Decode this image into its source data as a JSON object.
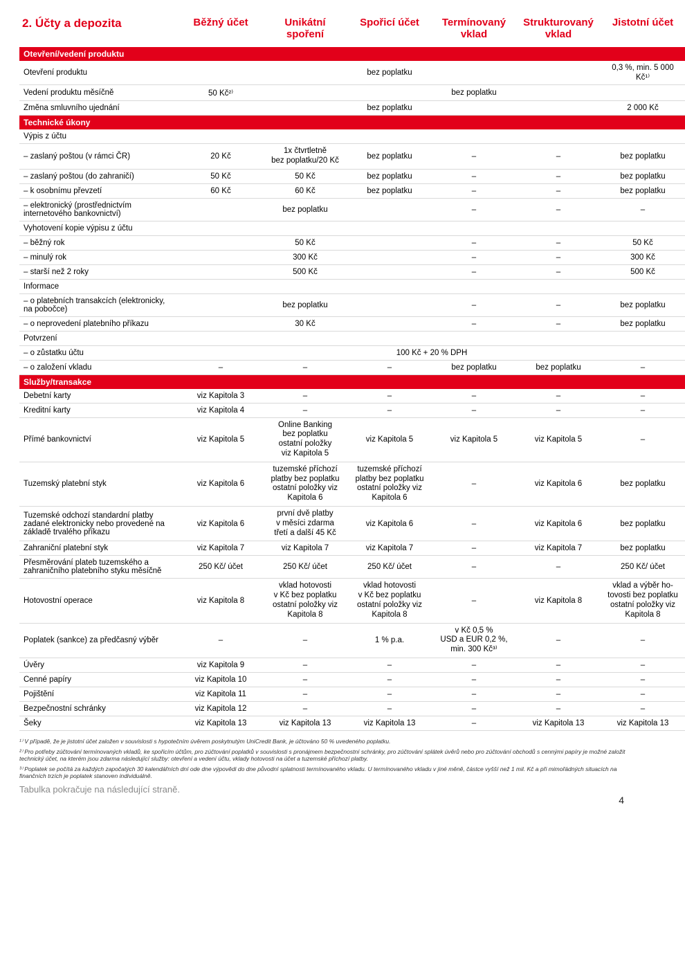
{
  "colors": {
    "accent": "#e2001a",
    "grid": "#d9d9d9",
    "muted": "#888888"
  },
  "header": {
    "title": "2. Účty a depozita",
    "cols": [
      "Běžný účet",
      "Unikátní spoření",
      "Spořicí účet",
      "Termínovaný vklad",
      "Strukturovaný vklad",
      "Jistotní účet"
    ]
  },
  "sections": [
    {
      "band": "Otevření/vedení produktu",
      "rows": [
        {
          "label": "Otevření produktu",
          "cells": [
            {
              "v": "bez poplatku",
              "span": 5
            },
            {
              "v": "0,3 %, min. 5 000 Kč¹⁾"
            }
          ]
        },
        {
          "label": "Vedení produktu měsíčně",
          "cells": [
            {
              "v": "50 Kč²⁾"
            },
            {
              "v": "bez poplatku",
              "span": 5
            }
          ]
        },
        {
          "label": "Změna smluvního ujednání",
          "cells": [
            {
              "v": "bez poplatku",
              "span": 5
            },
            {
              "v": "2 000 Kč"
            }
          ]
        }
      ]
    },
    {
      "band": "Technické úkony",
      "rows": [
        {
          "label": "Výpis z účtu",
          "subhead": true
        },
        {
          "label": "– zaslaný poštou (v rámci ČR)",
          "cells": [
            {
              "v": "20 Kč"
            },
            {
              "v": "1x čtvrtletně\nbez poplatku/20 Kč"
            },
            {
              "v": "bez poplatku"
            },
            {
              "v": "–"
            },
            {
              "v": "–"
            },
            {
              "v": "bez poplatku"
            }
          ]
        },
        {
          "label": "– zaslaný poštou (do zahraničí)",
          "cells": [
            {
              "v": "50 Kč"
            },
            {
              "v": "50 Kč"
            },
            {
              "v": "bez poplatku"
            },
            {
              "v": "–"
            },
            {
              "v": "–"
            },
            {
              "v": "bez poplatku"
            }
          ]
        },
        {
          "label": "– k osobnímu převzetí",
          "cells": [
            {
              "v": "60 Kč"
            },
            {
              "v": "60 Kč"
            },
            {
              "v": "bez poplatku"
            },
            {
              "v": "–"
            },
            {
              "v": "–"
            },
            {
              "v": "bez poplatku"
            }
          ]
        },
        {
          "label": "– elektronický (prostřednictvím internetového bankovnictví)",
          "cells": [
            {
              "v": "bez poplatku",
              "span": 3
            },
            {
              "v": "–"
            },
            {
              "v": "–"
            },
            {
              "v": "–"
            }
          ]
        },
        {
          "label": "Vyhotovení kopie výpisu z účtu",
          "subhead": true
        },
        {
          "label": "– běžný rok",
          "cells": [
            {
              "v": "50 Kč",
              "span": 3
            },
            {
              "v": "–"
            },
            {
              "v": "–"
            },
            {
              "v": "50 Kč"
            }
          ]
        },
        {
          "label": "– minulý rok",
          "cells": [
            {
              "v": "300 Kč",
              "span": 3
            },
            {
              "v": "–"
            },
            {
              "v": "–"
            },
            {
              "v": "300 Kč"
            }
          ]
        },
        {
          "label": "– starší než 2 roky",
          "cells": [
            {
              "v": "500 Kč",
              "span": 3
            },
            {
              "v": "–"
            },
            {
              "v": "–"
            },
            {
              "v": "500 Kč"
            }
          ]
        },
        {
          "label": "Informace",
          "subhead": true
        },
        {
          "label": "– o platebních transakcích (elektronicky, na pobočce)",
          "cells": [
            {
              "v": "bez poplatku",
              "span": 3
            },
            {
              "v": "–"
            },
            {
              "v": "–"
            },
            {
              "v": "bez poplatku"
            }
          ]
        },
        {
          "label": "– o neprovedení platebního příkazu",
          "cells": [
            {
              "v": "30 Kč",
              "span": 3
            },
            {
              "v": "–"
            },
            {
              "v": "–"
            },
            {
              "v": "bez poplatku"
            }
          ]
        },
        {
          "label": "Potvrzení",
          "subhead": true
        },
        {
          "label": "– o zůstatku účtu",
          "cells": [
            {
              "v": "100 Kč + 20 % DPH",
              "span": 6
            }
          ]
        },
        {
          "label": "– o založení vkladu",
          "cells": [
            {
              "v": "–"
            },
            {
              "v": "–"
            },
            {
              "v": "–"
            },
            {
              "v": "bez poplatku"
            },
            {
              "v": "bez poplatku"
            },
            {
              "v": "–"
            }
          ]
        }
      ]
    },
    {
      "band": "Služby/transakce",
      "rows": [
        {
          "label": "Debetní karty",
          "cells": [
            {
              "v": "viz Kapitola 3"
            },
            {
              "v": "–"
            },
            {
              "v": "–"
            },
            {
              "v": "–"
            },
            {
              "v": "–"
            },
            {
              "v": "–"
            }
          ]
        },
        {
          "label": "Kreditní karty",
          "cells": [
            {
              "v": "viz Kapitola 4"
            },
            {
              "v": "–"
            },
            {
              "v": "–"
            },
            {
              "v": "–"
            },
            {
              "v": "–"
            },
            {
              "v": "–"
            }
          ]
        },
        {
          "label": "Přímé bankovnictví",
          "cells": [
            {
              "v": "viz Kapitola 5"
            },
            {
              "v": "Online Banking\nbez poplatku\nostatní položky\nviz Kapitola 5"
            },
            {
              "v": "viz Kapitola 5"
            },
            {
              "v": "viz Kapitola 5"
            },
            {
              "v": "viz Kapitola 5"
            },
            {
              "v": "–"
            }
          ]
        },
        {
          "label": "Tuzemský platební styk",
          "cells": [
            {
              "v": "viz Kapitola 6"
            },
            {
              "v": "tuzemské příchozí\nplatby bez poplatku\nostatní položky viz\nKapitola 6"
            },
            {
              "v": "tuzemské příchozí\nplatby bez poplatku\nostatní položky viz\nKapitola 6"
            },
            {
              "v": "–"
            },
            {
              "v": "viz Kapitola 6"
            },
            {
              "v": "bez poplatku"
            }
          ]
        },
        {
          "label": "Tuzemské odchozí standardní platby zadané elektronicky nebo provedené na základě trvalého příkazu",
          "cells": [
            {
              "v": "viz Kapitola 6"
            },
            {
              "v": "první dvě platby\nv měsíci zdarma\ntřetí a další 45 Kč"
            },
            {
              "v": "viz Kapitola 6"
            },
            {
              "v": "–"
            },
            {
              "v": "viz Kapitola 6"
            },
            {
              "v": "bez poplatku"
            }
          ]
        },
        {
          "label": "Zahraniční platební styk",
          "cells": [
            {
              "v": "viz Kapitola 7"
            },
            {
              "v": "viz Kapitola 7"
            },
            {
              "v": "viz Kapitola 7"
            },
            {
              "v": "–"
            },
            {
              "v": "viz Kapitola 7"
            },
            {
              "v": "bez poplatku"
            }
          ]
        },
        {
          "label": "Přesměrování plateb tuzemského a zahraničního platebního styku měsíčně",
          "cells": [
            {
              "v": "250 Kč/ účet"
            },
            {
              "v": "250 Kč/ účet"
            },
            {
              "v": "250 Kč/ účet"
            },
            {
              "v": "–"
            },
            {
              "v": "–"
            },
            {
              "v": "250 Kč/ účet"
            }
          ]
        },
        {
          "label": "Hotovostní operace",
          "cells": [
            {
              "v": "viz Kapitola 8"
            },
            {
              "v": "vklad hotovosti\nv Kč bez poplatku\nostatní položky viz\nKapitola 8"
            },
            {
              "v": "vklad hotovosti\nv Kč bez poplatku\nostatní položky viz\nKapitola 8"
            },
            {
              "v": "–"
            },
            {
              "v": "viz Kapitola 8"
            },
            {
              "v": "vklad a výběr ho-\ntovosti bez poplatku\nostatní položky viz\nKapitola 8"
            }
          ]
        },
        {
          "label": "Poplatek (sankce) za předčasný výběr",
          "cells": [
            {
              "v": "–"
            },
            {
              "v": "–"
            },
            {
              "v": "1 % p.a."
            },
            {
              "v": "v Kč 0,5 %\nUSD a EUR 0,2 %,\nmin. 300 Kč³⁾"
            },
            {
              "v": "–"
            },
            {
              "v": "–"
            }
          ]
        },
        {
          "label": "Úvěry",
          "cells": [
            {
              "v": "viz Kapitola 9"
            },
            {
              "v": "–"
            },
            {
              "v": "–"
            },
            {
              "v": "–"
            },
            {
              "v": "–"
            },
            {
              "v": "–"
            }
          ]
        },
        {
          "label": "Cenné papíry",
          "cells": [
            {
              "v": "viz Kapitola 10"
            },
            {
              "v": "–"
            },
            {
              "v": "–"
            },
            {
              "v": "–"
            },
            {
              "v": "–"
            },
            {
              "v": "–"
            }
          ]
        },
        {
          "label": "Pojištění",
          "cells": [
            {
              "v": "viz Kapitola 11"
            },
            {
              "v": "–"
            },
            {
              "v": "–"
            },
            {
              "v": "–"
            },
            {
              "v": "–"
            },
            {
              "v": "–"
            }
          ]
        },
        {
          "label": "Bezpečnostní schránky",
          "cells": [
            {
              "v": "viz Kapitola 12"
            },
            {
              "v": "–"
            },
            {
              "v": "–"
            },
            {
              "v": "–"
            },
            {
              "v": "–"
            },
            {
              "v": "–"
            }
          ]
        },
        {
          "label": "Šeky",
          "cells": [
            {
              "v": "viz Kapitola 13"
            },
            {
              "v": "viz Kapitola 13"
            },
            {
              "v": "viz Kapitola 13"
            },
            {
              "v": "–"
            },
            {
              "v": "viz Kapitola 13"
            },
            {
              "v": "viz Kapitola 13"
            }
          ]
        }
      ]
    }
  ],
  "footnotes": [
    "¹⁾ V případě, že je jistotní účet založen v souvislosti s hypotečním úvěrem poskytnutým UniCredit Bank, je účtováno 50 % uvedeného poplatku.",
    "²⁾ Pro potřeby zúčtování termínovaných vkladů, ke spořicím účtům, pro zúčtování poplatků v souvislosti s pronájmem bezpečnostní schránky, pro zúčtování splátek úvěrů nebo pro zúčtování obchodů s cennými papíry je možné založit technický účet, na kterém jsou zdarma následující služby: otevření a vedení účtu, vklady hotovosti na účet a tuzemské příchozí platby.",
    "³⁾ Poplatek se počítá za každých započatých 30 kalendářních dní ode dne výpovědi do dne původní splatnosti termínovaného vkladu. U termínovaného vkladu v jiné měně, částce vyšší než 1 mil. Kč a při mimořádných situacích na finančních trzích je poplatek stanoven individuálně."
  ],
  "continue_text": "Tabulka pokračuje na následující straně.",
  "page_number": "4"
}
